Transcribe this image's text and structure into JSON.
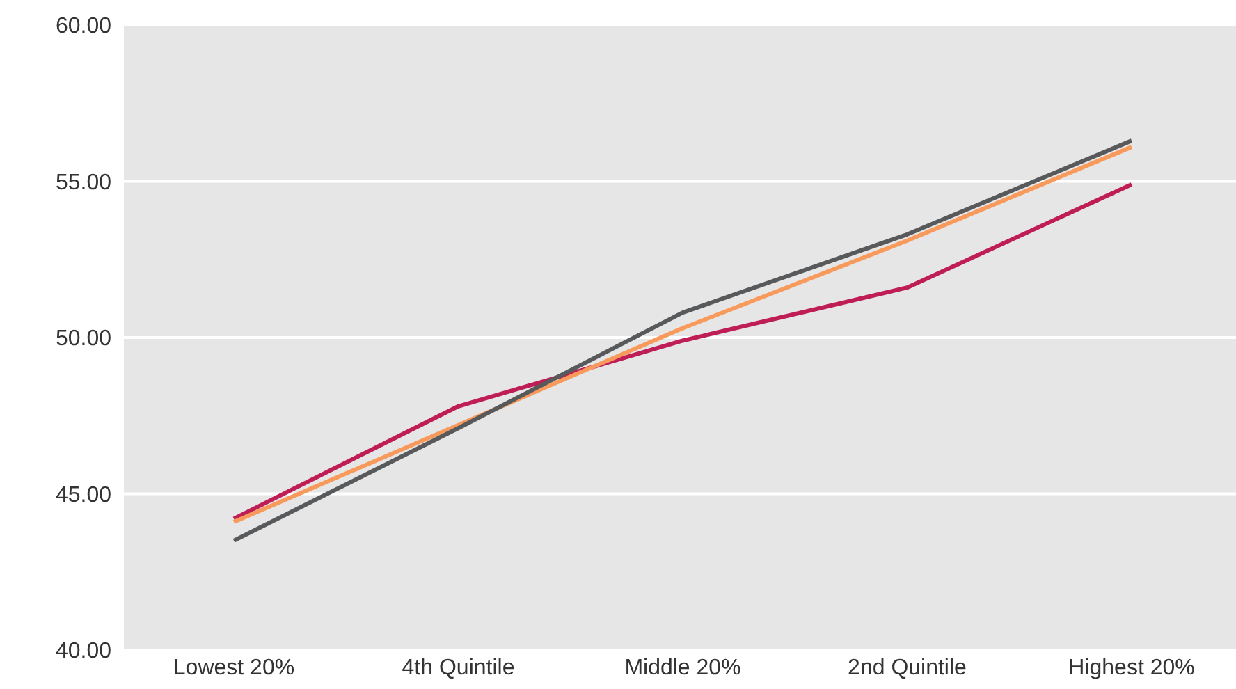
{
  "chart_data": {
    "type": "line",
    "categories": [
      "Lowest 20%",
      "4th Quintile",
      "Middle 20%",
      "2nd Quintile",
      "Highest 20%"
    ],
    "series": [
      {
        "color": "#be1e55",
        "values": [
          44.2,
          47.8,
          49.9,
          51.6,
          54.9
        ]
      },
      {
        "color": "#f79a5b",
        "values": [
          44.1,
          47.2,
          50.3,
          53.1,
          56.1
        ]
      },
      {
        "color": "#58595b",
        "values": [
          43.5,
          47.1,
          50.8,
          53.3,
          56.3
        ]
      }
    ],
    "ylim": [
      40,
      60
    ],
    "yticks": [
      {
        "value": 40,
        "label": "40.00"
      },
      {
        "value": 45,
        "label": "45.00"
      },
      {
        "value": 50,
        "label": "50.00"
      },
      {
        "value": 55,
        "label": "55.00"
      },
      {
        "value": 60,
        "label": "60.00"
      }
    ],
    "grid": "y",
    "marker": "none",
    "line_style": "solid",
    "legend": false
  }
}
